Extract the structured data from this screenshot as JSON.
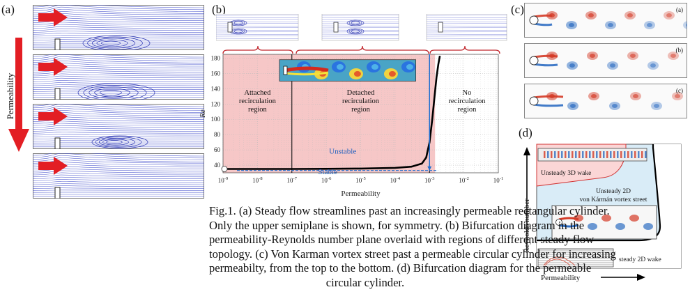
{
  "panel_a": {
    "label": "(a)",
    "side_label": "Permeability"
  },
  "panel_b": {
    "label": "(b)",
    "xlabel": "Permeability",
    "ylabel": "Re",
    "region_attached": [
      "Attached",
      "recirculation",
      "region"
    ],
    "region_detached": [
      "Detached",
      "recirculation",
      "region"
    ],
    "region_none": [
      "No",
      "recirculation",
      "region"
    ],
    "unstable_label": "Unstable",
    "stable_label": "Stable"
  },
  "panel_c": {
    "label": "(c)",
    "sub_labels": [
      "(a)",
      "(b)",
      "(c)"
    ]
  },
  "panel_d": {
    "label": "(d)",
    "ylabel": "Reynolds number",
    "xlabel": "Permeability",
    "region_3d": "Unsteady 3D wake",
    "region_2d": [
      "Unsteady 2D",
      "von Kármán vortex street"
    ],
    "region_steady": "steady 2D wake"
  },
  "caption": [
    "Fig.1. (a) Steady flow streamlines past an increasingly permeable rectangular cylinder.",
    "Only the upper semiplane is shown, for symmetry. (b) Bifurcation diagram in the",
    "permeability-Reynolds number plane overlaid with regions of different steady flow",
    "topology. (c) Von Karman vortex street past a permeable circular cylinder for increasing",
    "permeabilty, from the top to the bottom. (d) Bifurcation diagram for the permeable",
    "circular cylinder."
  ],
  "chart_data": {
    "type": "line",
    "xlabel": "Permeability",
    "ylabel": "Re",
    "xscale": "log",
    "x_ticks": [
      "10^-9",
      "10^-8",
      "10^-7",
      "10^-6",
      "10^-5",
      "10^-4",
      "10^-3",
      "10^-2",
      "10^-1"
    ],
    "y_ticks": [
      40,
      60,
      80,
      100,
      120,
      140,
      160,
      180
    ],
    "xlim": [
      1e-09,
      0.1
    ],
    "ylim": [
      30,
      185
    ],
    "grid": true,
    "series": [
      {
        "x": [
          1e-09,
          1e-08,
          1e-07,
          1e-06,
          1e-05,
          0.0001,
          0.0003,
          0.0006,
          0.0008,
          0.001,
          0.0012,
          0.0014,
          0.0016,
          0.0018,
          0.002
        ],
        "y": [
          35,
          35,
          35,
          35.2,
          35.6,
          36.5,
          38,
          42,
          50,
          70,
          100,
          130,
          155,
          172,
          183
        ]
      }
    ],
    "region_boundaries_x": [
      1e-07,
      0.001
    ],
    "critical_permeability_marker_x": 0.001
  }
}
